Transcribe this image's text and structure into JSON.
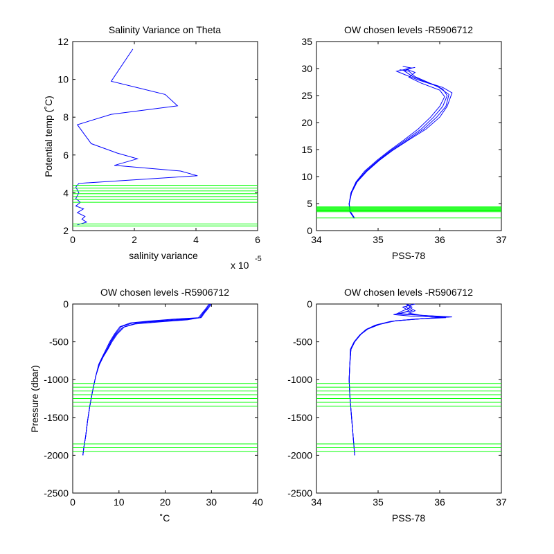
{
  "colors": {
    "data": "#0000ff",
    "chosen_levels": "#00ff00",
    "axes": "#000000",
    "background": "#ffffff"
  },
  "chart_data": [
    {
      "type": "line",
      "title": "Salinity Variance on Theta",
      "xlabel": "salinity variance",
      "ylabel": "Potential temp (˚C)",
      "x_multiplier": {
        "base": "x 10",
        "exponent": "-5"
      },
      "xlim": [
        0,
        6
      ],
      "ylim": [
        2,
        12
      ],
      "xticks": [
        0,
        2,
        4,
        6
      ],
      "yticks": [
        2,
        4,
        6,
        8,
        10,
        12
      ],
      "xtick_labels": [
        "0",
        "2",
        "4",
        "6"
      ],
      "ytick_labels": [
        "2",
        "4",
        "6",
        "8",
        "10",
        "12"
      ],
      "series": [
        {
          "x": [
            1.95,
            1.25,
            3.0,
            3.4,
            1.25,
            0.15,
            0.6,
            1.45,
            2.1,
            1.35,
            3.5,
            4.05,
            0.2,
            0.1,
            0.2,
            0.1,
            0.25,
            0.1,
            0.35,
            0.15,
            0.4,
            0.3,
            0.45,
            0.15
          ],
          "y": [
            11.6,
            9.9,
            9.2,
            8.6,
            8.15,
            7.6,
            6.6,
            6.1,
            5.8,
            5.45,
            5.15,
            4.9,
            4.5,
            4.3,
            4.0,
            3.7,
            3.5,
            3.3,
            3.15,
            2.95,
            2.75,
            2.6,
            2.45,
            2.3
          ]
        }
      ],
      "chosen_levels": [
        4.4,
        4.25,
        4.1,
        3.95,
        3.8,
        3.65,
        3.5,
        2.35,
        2.25
      ]
    },
    {
      "type": "line",
      "title": "OW chosen levels -R5906712",
      "xlabel": "PSS-78",
      "ylabel": "",
      "xlim": [
        34,
        37
      ],
      "ylim": [
        0,
        35
      ],
      "xticks": [
        34,
        35,
        36,
        37
      ],
      "yticks": [
        0,
        5,
        10,
        15,
        20,
        25,
        30,
        35
      ],
      "xtick_labels": [
        "34",
        "35",
        "36",
        "37"
      ],
      "ytick_labels": [
        "0",
        "5",
        "10",
        "15",
        "20",
        "25",
        "30",
        "35"
      ],
      "series": [
        {
          "x": [
            34.62,
            34.55,
            34.53,
            34.56,
            34.65,
            34.8,
            35.0,
            35.2,
            35.45,
            35.7,
            35.9,
            36.05,
            36.12,
            36.05,
            35.8,
            35.6,
            35.5,
            35.35
          ],
          "y": [
            2.3,
            3.5,
            5.0,
            7.0,
            9.0,
            11.0,
            13.0,
            14.8,
            16.8,
            18.8,
            21.0,
            23.0,
            25.0,
            26.2,
            27.5,
            28.5,
            29.5,
            29.8
          ]
        },
        {
          "x": [
            34.61,
            34.54,
            34.53,
            34.57,
            34.66,
            34.82,
            35.02,
            35.23,
            35.5,
            35.78,
            36.0,
            36.12,
            36.2,
            36.05,
            35.75,
            35.55,
            35.42,
            35.55,
            35.4
          ],
          "y": [
            2.3,
            3.5,
            5.0,
            7.0,
            9.0,
            11.0,
            13.0,
            14.8,
            16.8,
            18.8,
            21.0,
            23.0,
            25.5,
            26.5,
            27.6,
            28.6,
            29.6,
            30.1,
            30.4
          ]
        },
        {
          "x": [
            34.62,
            34.55,
            34.53,
            34.56,
            34.64,
            34.78,
            34.98,
            35.18,
            35.42,
            35.65,
            35.85,
            36.0,
            36.08,
            36.0,
            35.7,
            35.5,
            35.6,
            35.45,
            35.6
          ],
          "y": [
            2.3,
            3.5,
            5.0,
            7.0,
            9.0,
            11.0,
            13.0,
            14.8,
            16.8,
            18.8,
            21.0,
            23.0,
            24.8,
            26.0,
            27.3,
            28.4,
            29.3,
            29.9,
            30.2
          ]
        },
        {
          "x": [
            34.61,
            34.54,
            34.53,
            34.57,
            34.65,
            34.81,
            35.01,
            35.22,
            35.48,
            35.74,
            35.95,
            36.1,
            36.15,
            35.95,
            35.65,
            35.45,
            35.3,
            35.5
          ],
          "y": [
            2.3,
            3.5,
            5.0,
            7.0,
            9.0,
            11.0,
            13.0,
            14.8,
            16.8,
            18.8,
            21.0,
            23.0,
            25.2,
            26.8,
            27.9,
            28.8,
            29.5,
            30.0
          ]
        }
      ],
      "chosen_levels": [
        4.4,
        4.25,
        4.1,
        3.95,
        3.8,
        3.65,
        3.5,
        2.35
      ]
    },
    {
      "type": "line",
      "title": "OW chosen levels -R5906712",
      "xlabel": "˚C",
      "ylabel": "Pressure (dbar)",
      "xlim": [
        0,
        40
      ],
      "ylim": [
        -2500,
        0
      ],
      "xticks": [
        0,
        10,
        20,
        30,
        40
      ],
      "yticks": [
        -2500,
        -2000,
        -1500,
        -1000,
        -500,
        0
      ],
      "xtick_labels": [
        "0",
        "10",
        "20",
        "30",
        "40"
      ],
      "ytick_labels": [
        "-2500",
        "-2000",
        "-1500",
        "-1000",
        "-500",
        "0"
      ],
      "series": [
        {
          "x": [
            29.8,
            29.0,
            28.2,
            27.5,
            24.0,
            18.0,
            13.0,
            10.5,
            9.2,
            8.2,
            7.4,
            6.5,
            5.7,
            5.0,
            4.3,
            3.7,
            3.2,
            2.8,
            2.4,
            2.2
          ],
          "y": [
            0,
            -60,
            -120,
            -180,
            -200,
            -225,
            -250,
            -300,
            -400,
            -500,
            -600,
            -700,
            -800,
            -950,
            -1150,
            -1350,
            -1550,
            -1750,
            -1900,
            -2000
          ]
        },
        {
          "x": [
            30.0,
            29.3,
            28.5,
            27.8,
            25.5,
            20.0,
            14.0,
            11.2,
            9.6,
            8.5,
            7.6,
            6.6,
            5.8,
            5.0,
            4.3,
            3.7,
            3.2,
            2.8,
            2.4,
            2.2
          ],
          "y": [
            0,
            -60,
            -120,
            -180,
            -200,
            -225,
            -250,
            -300,
            -400,
            -500,
            -600,
            -700,
            -800,
            -950,
            -1150,
            -1350,
            -1550,
            -1750,
            -1900,
            -2000
          ]
        },
        {
          "x": [
            29.5,
            28.8,
            28.0,
            27.2,
            22.0,
            16.5,
            12.5,
            10.2,
            9.0,
            8.0,
            7.2,
            6.4,
            5.6,
            5.0,
            4.3,
            3.7,
            3.2,
            2.8,
            2.4,
            2.2
          ],
          "y": [
            0,
            -60,
            -120,
            -180,
            -200,
            -225,
            -250,
            -300,
            -400,
            -500,
            -600,
            -700,
            -800,
            -950,
            -1150,
            -1350,
            -1550,
            -1750,
            -1900,
            -2000
          ]
        },
        {
          "x": [
            29.7,
            29.1,
            28.3,
            27.6,
            24.8,
            19.0,
            13.5,
            10.8,
            9.4,
            8.3,
            7.5,
            6.5,
            5.7,
            5.0,
            4.3,
            3.7,
            3.2,
            2.8,
            2.4,
            2.2
          ],
          "y": [
            0,
            -60,
            -120,
            -180,
            -210,
            -235,
            -265,
            -310,
            -400,
            -500,
            -600,
            -700,
            -800,
            -950,
            -1150,
            -1350,
            -1550,
            -1750,
            -1900,
            -2000
          ]
        }
      ],
      "chosen_levels": [
        -1050,
        -1100,
        -1150,
        -1200,
        -1250,
        -1300,
        -1350,
        -1850,
        -1900,
        -1950
      ]
    },
    {
      "type": "line",
      "title": "OW chosen levels -R5906712",
      "xlabel": "PSS-78",
      "ylabel": "",
      "xlim": [
        34,
        37
      ],
      "ylim": [
        -2500,
        0
      ],
      "xticks": [
        34,
        35,
        36,
        37
      ],
      "yticks": [
        -2500,
        -2000,
        -1500,
        -1000,
        -500,
        0
      ],
      "xtick_labels": [
        "34",
        "35",
        "36",
        "37"
      ],
      "ytick_labels": [
        "-2500",
        "-2000",
        "-1500",
        "-1000",
        "-500",
        "0"
      ],
      "series": [
        {
          "x": [
            35.55,
            35.5,
            35.6,
            35.5,
            35.7,
            36.2,
            35.8,
            35.3,
            35.0,
            34.82,
            34.72,
            34.62,
            34.56,
            34.54,
            34.53,
            34.54,
            34.56,
            34.58,
            34.6,
            34.61,
            34.62
          ],
          "y": [
            0,
            -40,
            -90,
            -120,
            -150,
            -170,
            -190,
            -220,
            -270,
            -330,
            -400,
            -500,
            -600,
            -800,
            -1000,
            -1200,
            -1400,
            -1600,
            -1800,
            -1900,
            -2000
          ]
        },
        {
          "x": [
            35.45,
            35.55,
            35.4,
            35.3,
            35.9,
            36.1,
            35.6,
            35.2,
            34.95,
            34.8,
            34.7,
            34.61,
            34.55,
            34.54,
            34.53,
            34.54,
            34.56,
            34.58,
            34.6,
            34.61,
            34.62
          ],
          "y": [
            0,
            -40,
            -90,
            -130,
            -160,
            -180,
            -200,
            -230,
            -280,
            -340,
            -410,
            -500,
            -600,
            -800,
            -1000,
            -1200,
            -1400,
            -1600,
            -1800,
            -1900,
            -2000
          ]
        },
        {
          "x": [
            35.5,
            35.45,
            35.55,
            35.25,
            35.6,
            36.05,
            35.7,
            35.25,
            34.98,
            34.81,
            34.71,
            34.62,
            34.56,
            34.54,
            34.53,
            34.54,
            34.56,
            34.58,
            34.6,
            34.61,
            34.62
          ],
          "y": [
            0,
            -40,
            -90,
            -140,
            -165,
            -175,
            -195,
            -225,
            -275,
            -335,
            -405,
            -500,
            -600,
            -800,
            -1000,
            -1200,
            -1400,
            -1600,
            -1800,
            -1900,
            -2000
          ]
        },
        {
          "x": [
            35.6,
            35.4,
            35.5,
            35.35,
            35.8,
            36.15,
            35.75,
            35.28,
            35.02,
            34.83,
            34.72,
            34.62,
            34.56,
            34.54,
            34.53,
            34.54,
            34.56,
            34.58,
            34.6,
            34.61,
            34.62
          ],
          "y": [
            0,
            -40,
            -90,
            -125,
            -155,
            -172,
            -192,
            -222,
            -272,
            -332,
            -402,
            -500,
            -600,
            -800,
            -1000,
            -1200,
            -1400,
            -1600,
            -1800,
            -1900,
            -2000
          ]
        }
      ],
      "chosen_levels": [
        -1050,
        -1100,
        -1150,
        -1200,
        -1250,
        -1300,
        -1350,
        -1850,
        -1900,
        -1950
      ]
    }
  ]
}
